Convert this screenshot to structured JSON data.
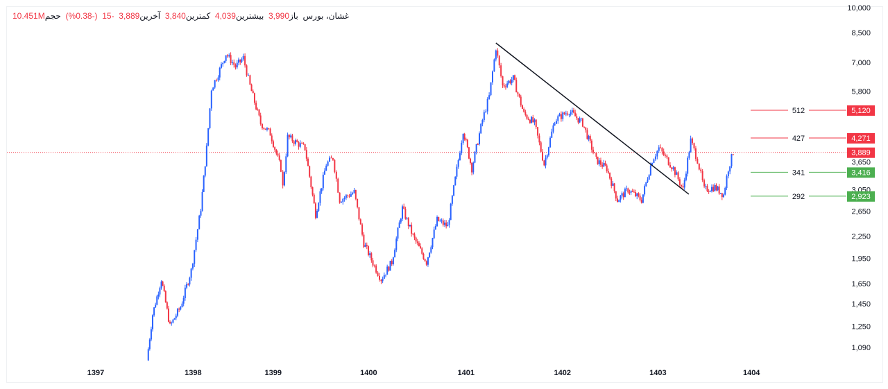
{
  "legend": {
    "symbol": "غشان، بورس",
    "open_label": "باز",
    "open": "3,990",
    "high_label": "بیشترین",
    "high": "4,039",
    "low_label": "کمترین",
    "low": "3,840",
    "close_label": "آخرین",
    "close": "3,889",
    "change": "-15",
    "change_pct": "(-0.38%)",
    "volume_label": "حجم",
    "volume": "10.451M"
  },
  "colors": {
    "up": "#2962ff",
    "down": "#f23645",
    "support": "#4caf50",
    "resistance": "#f23645"
  },
  "chart_data": {
    "type": "candlestick",
    "y_scale": "log",
    "ylim": [
      1000,
      10000
    ],
    "y_ticks": [
      10000,
      8500,
      7000,
      5800,
      3650,
      3050,
      2650,
      2250,
      1950,
      1650,
      1450,
      1250,
      1090
    ],
    "x_ticks": [
      {
        "label": "1397",
        "t": 1397.0
      },
      {
        "label": "1398",
        "t": 1398.01
      },
      {
        "label": "1399",
        "t": 1398.84
      },
      {
        "label": "1400",
        "t": 1399.83
      },
      {
        "label": "1401",
        "t": 1400.84
      },
      {
        "label": "1402",
        "t": 1401.84
      },
      {
        "label": "1403",
        "t": 1402.83
      },
      {
        "label": "1404",
        "t": 1403.8
      }
    ],
    "price_path": [
      [
        1397.53,
        1000
      ],
      [
        1397.59,
        1350
      ],
      [
        1397.68,
        1700
      ],
      [
        1397.77,
        1250
      ],
      [
        1397.88,
        1420
      ],
      [
        1397.99,
        1800
      ],
      [
        1398.09,
        2700
      ],
      [
        1398.15,
        4000
      ],
      [
        1398.2,
        5900
      ],
      [
        1398.27,
        6500
      ],
      [
        1398.35,
        7400
      ],
      [
        1398.45,
        6800
      ],
      [
        1398.53,
        7200
      ],
      [
        1398.6,
        6000
      ],
      [
        1398.71,
        4700
      ],
      [
        1398.81,
        4400
      ],
      [
        1398.92,
        3500
      ],
      [
        1398.94,
        3100
      ],
      [
        1398.99,
        4300
      ],
      [
        1399.17,
        4000
      ],
      [
        1399.28,
        2600
      ],
      [
        1399.39,
        3600
      ],
      [
        1399.46,
        3750
      ],
      [
        1399.53,
        2850
      ],
      [
        1399.68,
        3000
      ],
      [
        1399.78,
        2150
      ],
      [
        1399.89,
        1850
      ],
      [
        1399.96,
        1700
      ],
      [
        1400.07,
        1900
      ],
      [
        1400.18,
        2700
      ],
      [
        1400.29,
        2250
      ],
      [
        1400.43,
        1900
      ],
      [
        1400.54,
        2500
      ],
      [
        1400.65,
        2400
      ],
      [
        1400.76,
        3700
      ],
      [
        1400.81,
        4500
      ],
      [
        1400.9,
        3500
      ],
      [
        1401.01,
        4800
      ],
      [
        1401.08,
        5600
      ],
      [
        1401.15,
        7700
      ],
      [
        1401.22,
        6000
      ],
      [
        1401.33,
        6300
      ],
      [
        1401.44,
        5000
      ],
      [
        1401.55,
        4700
      ],
      [
        1401.65,
        3600
      ],
      [
        1401.76,
        4800
      ],
      [
        1401.91,
        5100
      ],
      [
        1402.05,
        4700
      ],
      [
        1402.19,
        3700
      ],
      [
        1402.3,
        3500
      ],
      [
        1402.41,
        2850
      ],
      [
        1402.52,
        3050
      ],
      [
        1402.66,
        2850
      ],
      [
        1402.77,
        3700
      ],
      [
        1402.84,
        4000
      ],
      [
        1402.99,
        3500
      ],
      [
        1403.09,
        3050
      ],
      [
        1403.17,
        4200
      ],
      [
        1403.24,
        3700
      ],
      [
        1403.31,
        3050
      ],
      [
        1403.42,
        3100
      ],
      [
        1403.51,
        2950
      ],
      [
        1403.56,
        3500
      ],
      [
        1403.61,
        3889
      ]
    ],
    "trendline": [
      [
        1401.15,
        7940
      ],
      [
        1403.15,
        2960
      ]
    ],
    "levels": [
      {
        "price": 5120,
        "price_label": "5,120",
        "label": "512",
        "kind": "resistance"
      },
      {
        "price": 4271,
        "price_label": "4,271",
        "label": "427",
        "kind": "resistance"
      },
      {
        "price": 3416,
        "price_label": "3,416",
        "label": "341",
        "kind": "support"
      },
      {
        "price": 2923,
        "price_label": "2,923",
        "label": "292",
        "kind": "support"
      }
    ],
    "last_price": 3889,
    "last_price_label": "3,889"
  }
}
